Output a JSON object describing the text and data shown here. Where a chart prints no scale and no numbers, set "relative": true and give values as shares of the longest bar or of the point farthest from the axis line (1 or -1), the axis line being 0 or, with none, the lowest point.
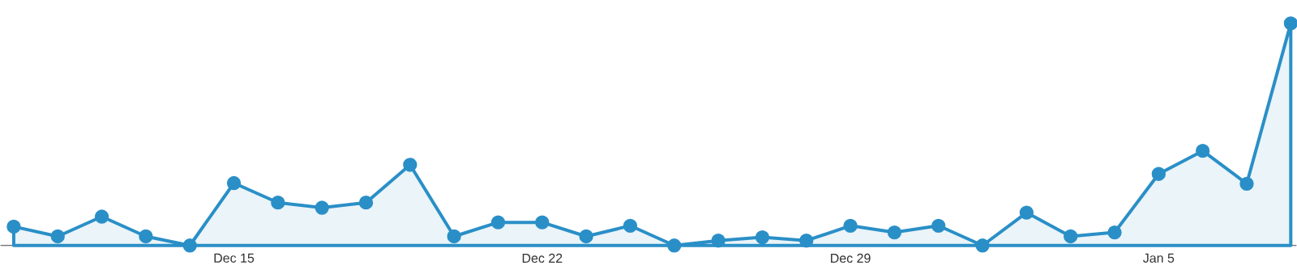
{
  "chart_data": {
    "type": "area",
    "relative": true,
    "marker": "circle",
    "color": "#2a8fc7",
    "categories": [
      null,
      null,
      null,
      null,
      null,
      "Dec 15",
      null,
      null,
      null,
      null,
      null,
      null,
      "Dec 22",
      null,
      null,
      null,
      null,
      null,
      null,
      "Dec 29",
      null,
      null,
      null,
      null,
      null,
      null,
      "Jan 5",
      null,
      null,
      null
    ],
    "values": [
      0.085,
      0.041,
      0.13,
      0.041,
      0,
      0.281,
      0.193,
      0.17,
      0.193,
      0.363,
      0.041,
      0.104,
      0.104,
      0.041,
      0.089,
      0,
      0.022,
      0.037,
      0.022,
      0.089,
      0.059,
      0.089,
      0,
      0.148,
      0.041,
      0.059,
      0.322,
      0.426,
      0.278,
      1
    ]
  }
}
